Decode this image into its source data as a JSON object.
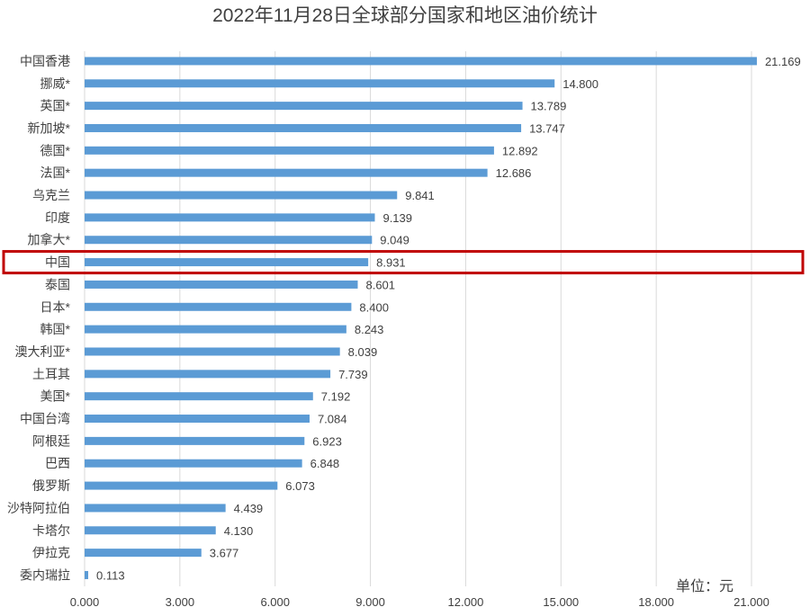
{
  "chart_data": {
    "type": "bar",
    "orientation": "horizontal",
    "title": "2022年11月28日全球部分国家和地区油价统计",
    "unit_label": "单位：元",
    "xlim": [
      0,
      21
    ],
    "xticks": [
      "0.000",
      "3.000",
      "6.000",
      "9.000",
      "12.000",
      "15.000",
      "18.000",
      "21.000"
    ],
    "grid": true,
    "highlight": "中国",
    "highlight_color": "#c00000",
    "bar_color": "#5b9bd5",
    "categories": [
      "中国香港",
      "挪威*",
      "英国*",
      "新加坡*",
      "德国*",
      "法国*",
      "乌克兰",
      "印度",
      "加拿大*",
      "中国",
      "泰国",
      "日本*",
      "韩国*",
      "澳大利亚*",
      "土耳其",
      "美国*",
      "中国台湾",
      "阿根廷",
      "巴西",
      "俄罗斯",
      "沙特阿拉伯",
      "卡塔尔",
      "伊拉克",
      "委内瑞拉"
    ],
    "values": [
      21.169,
      14.8,
      13.789,
      13.747,
      12.892,
      12.686,
      9.841,
      9.139,
      9.049,
      8.931,
      8.601,
      8.4,
      8.243,
      8.039,
      7.739,
      7.192,
      7.084,
      6.923,
      6.848,
      6.073,
      4.439,
      4.13,
      3.677,
      0.113
    ],
    "value_labels": [
      "21.169",
      "14.800",
      "13.789",
      "13.747",
      "12.892",
      "12.686",
      "9.841",
      "9.139",
      "9.049",
      "8.931",
      "8.601",
      "8.400",
      "8.243",
      "8.039",
      "7.739",
      "7.192",
      "7.084",
      "6.923",
      "6.848",
      "6.073",
      "4.439",
      "4.130",
      "3.677",
      "0.113"
    ]
  }
}
